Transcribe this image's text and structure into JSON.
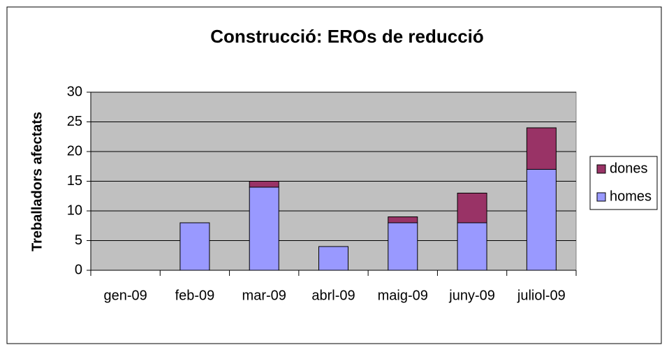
{
  "chart_data": {
    "type": "stacked_bar",
    "title": "Construcció: EROs de reducció",
    "y_label": "Treballadors afectats",
    "categories": [
      "gen-09",
      "feb-09",
      "mar-09",
      "abrl-09",
      "maig-09",
      "juny-09",
      "juliol-09"
    ],
    "series": [
      {
        "name": "homes",
        "color": "#9999ff",
        "values": [
          0,
          8,
          14,
          4,
          8,
          8,
          17
        ]
      },
      {
        "name": "dones",
        "color": "#993366",
        "values": [
          0,
          0,
          1,
          0,
          1,
          5,
          7
        ]
      }
    ],
    "ylim": [
      0,
      30
    ],
    "yticks": [
      0,
      5,
      10,
      15,
      20,
      25,
      30
    ],
    "grid": true,
    "legend": "right"
  }
}
